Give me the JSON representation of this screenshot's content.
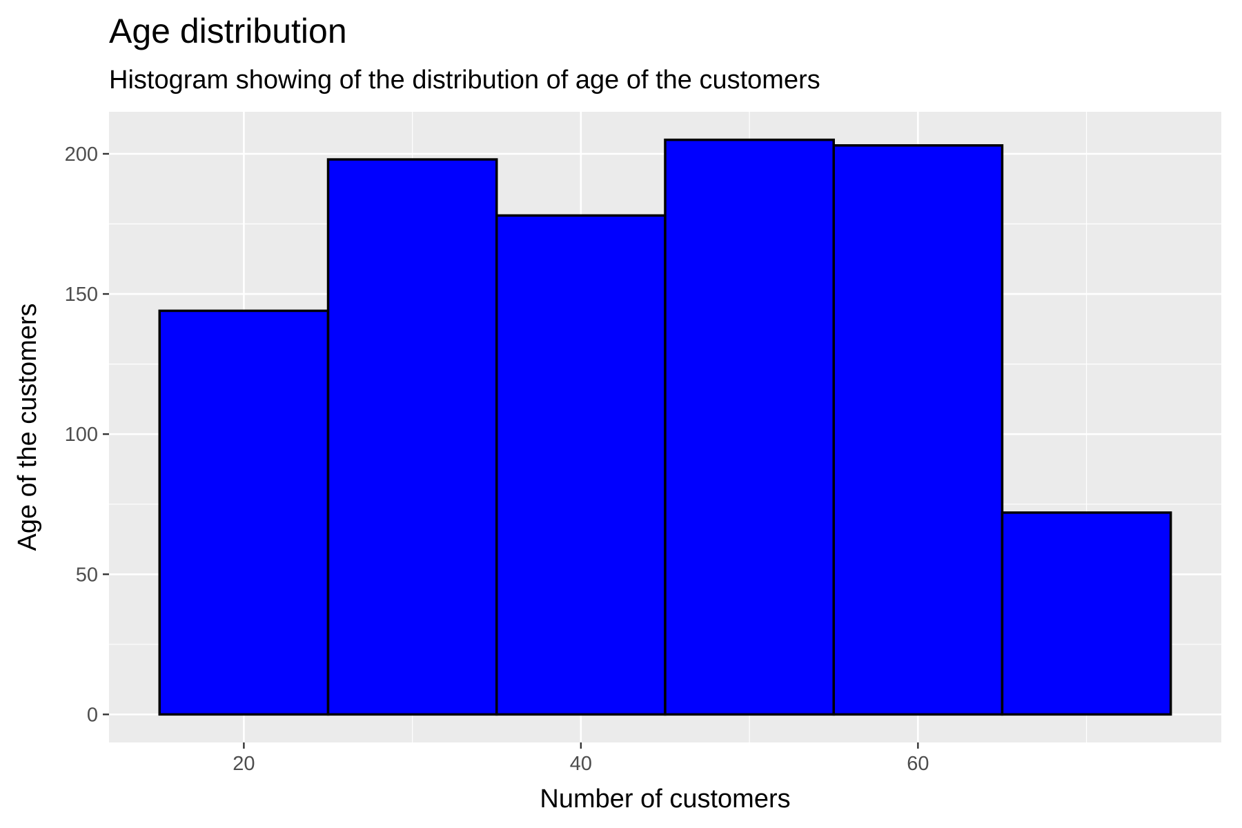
{
  "chart_data": {
    "type": "bar",
    "title": "Age distribution",
    "subtitle": "Histogram showing of the distribution of age of the customers",
    "xlabel": "Number of customers",
    "ylabel": "Age of the customers",
    "bins": [
      {
        "x0": 15,
        "x1": 25,
        "value": 144
      },
      {
        "x0": 25,
        "x1": 35,
        "value": 198
      },
      {
        "x0": 35,
        "x1": 45,
        "value": 178
      },
      {
        "x0": 45,
        "x1": 55,
        "value": 205
      },
      {
        "x0": 55,
        "x1": 65,
        "value": 203
      },
      {
        "x0": 65,
        "x1": 75,
        "value": 72
      }
    ],
    "xlim": [
      12,
      78
    ],
    "ylim": [
      -10,
      215
    ],
    "xticks": [
      20,
      40,
      60
    ],
    "xtick_labels": [
      "20",
      "40",
      "60"
    ],
    "yticks": [
      0,
      50,
      100,
      150,
      200
    ],
    "ytick_labels": [
      "0",
      "50",
      "100",
      "150",
      "200"
    ],
    "grid": true,
    "legend": "none",
    "colors": {
      "bar_fill": "#0000ff",
      "bar_stroke": "#000000",
      "panel_background": "#ebebeb",
      "grid": "#ffffff"
    }
  }
}
